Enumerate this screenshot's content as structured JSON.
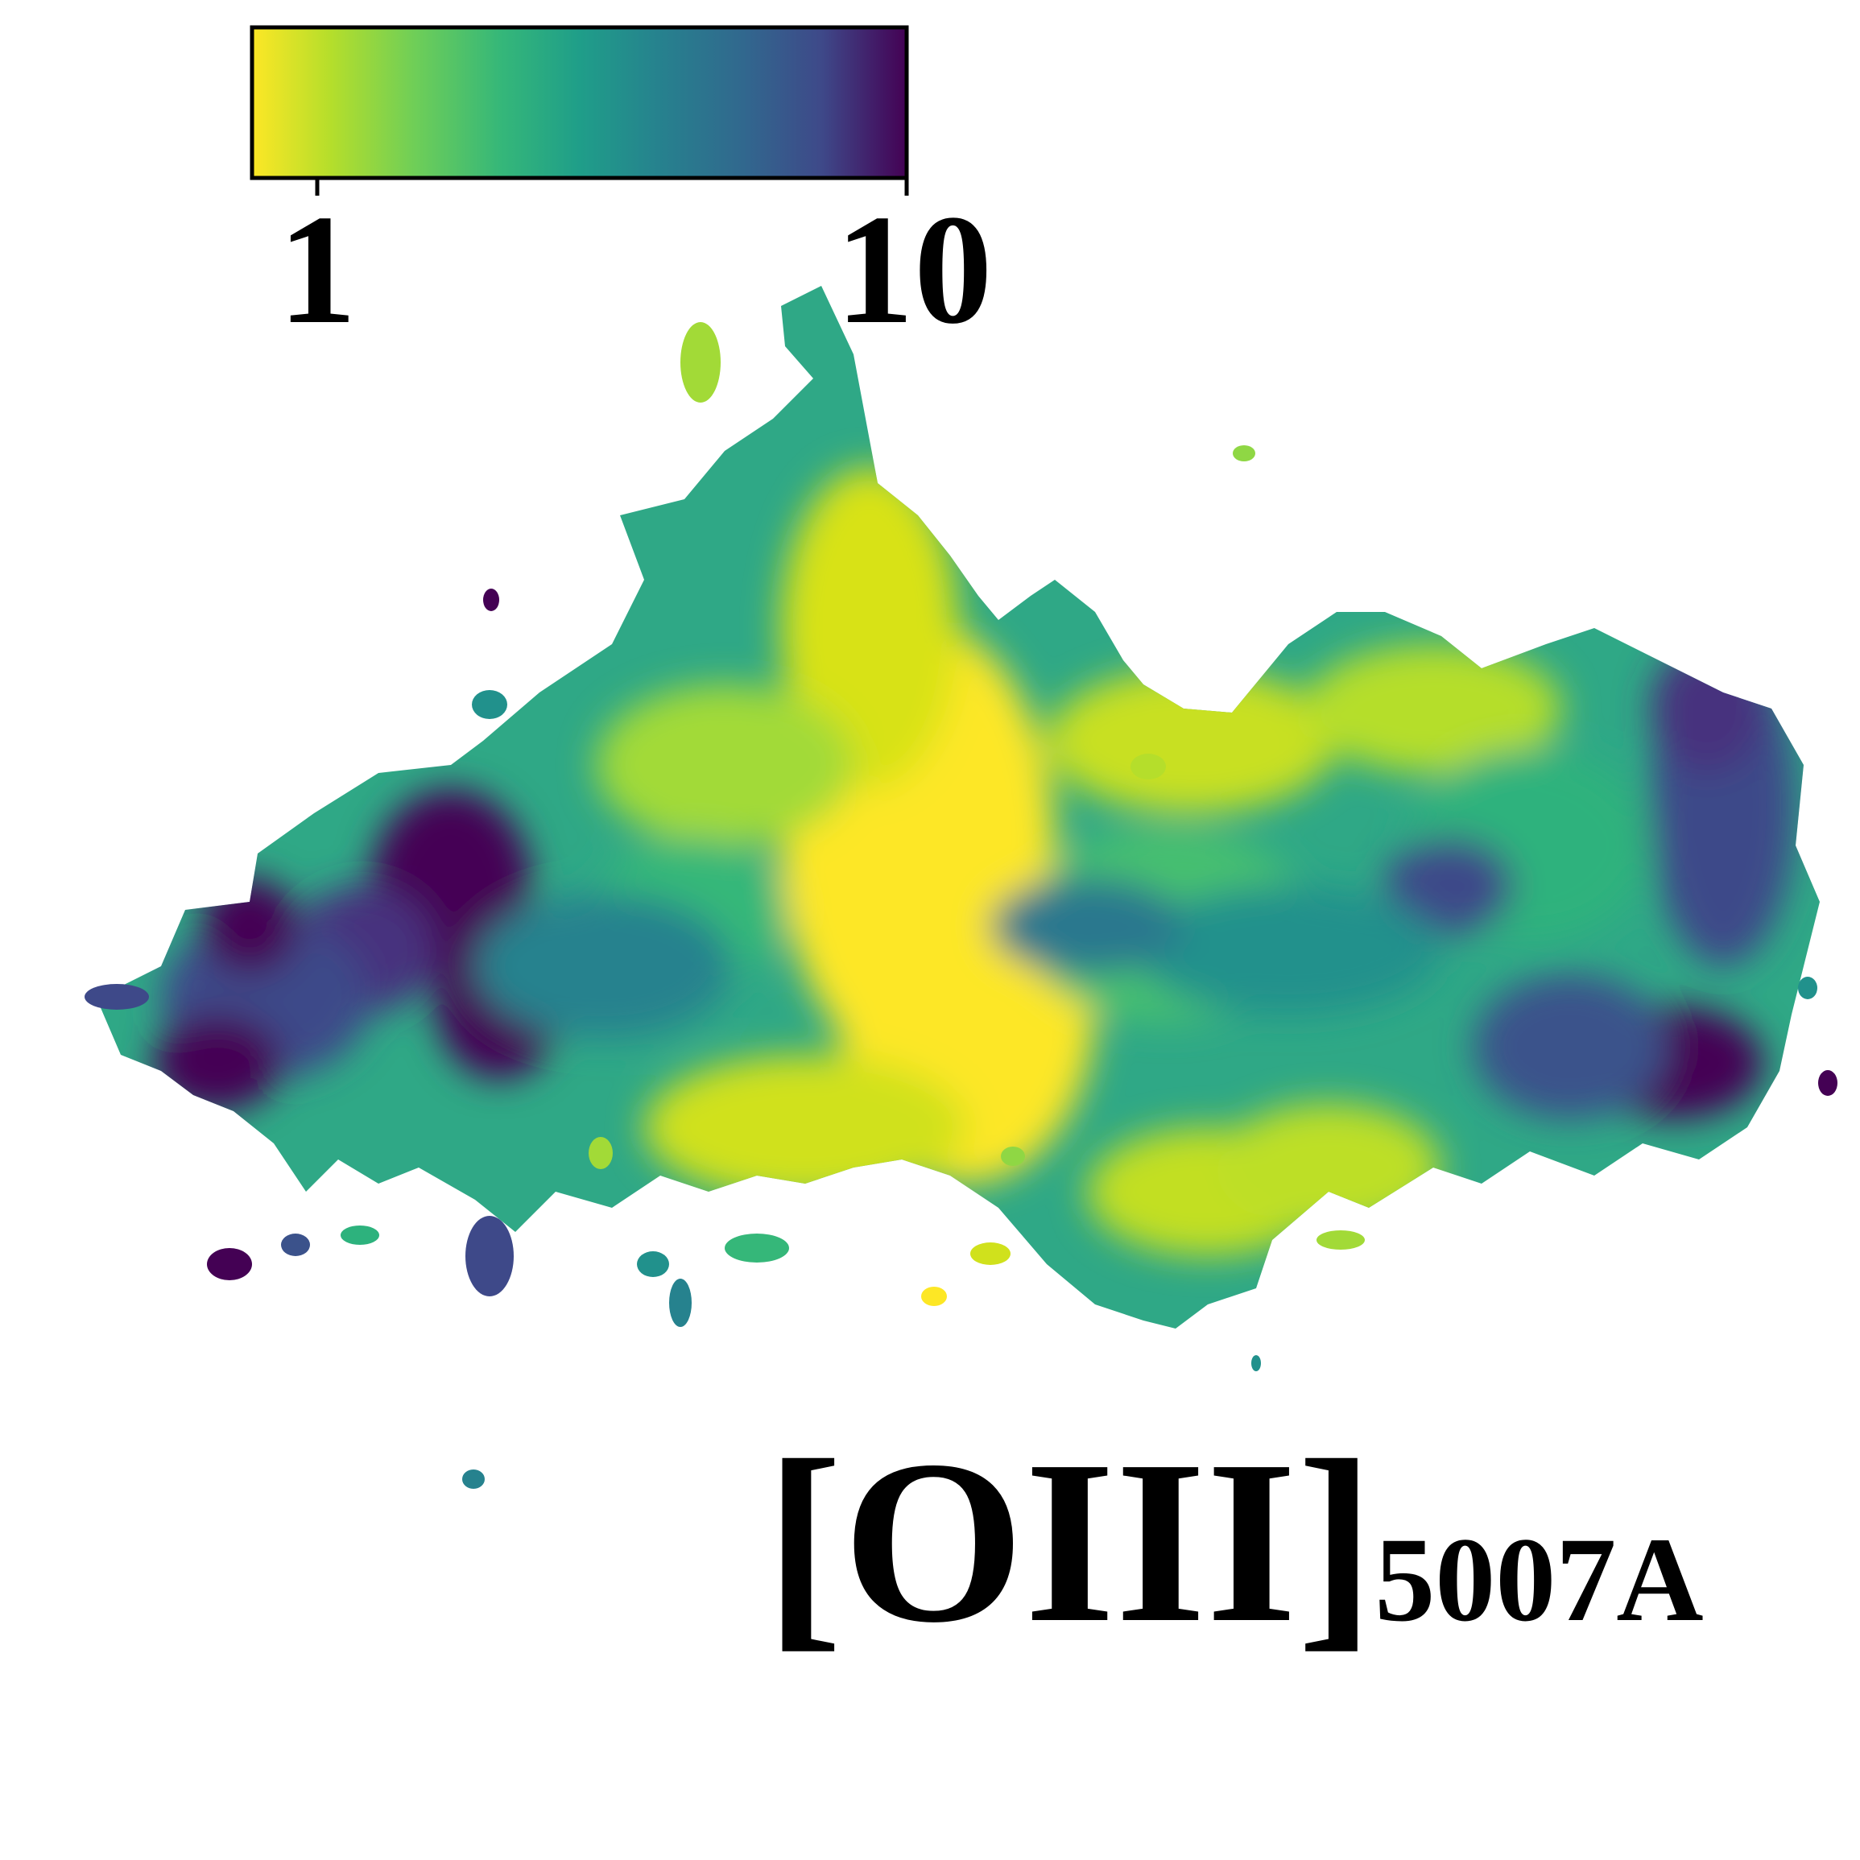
{
  "chart_data": {
    "type": "heatmap",
    "title": "",
    "xlabel": "",
    "ylabel": "",
    "colormap": "viridis_r",
    "colorbar": {
      "scale": "log",
      "range": [
        0.9,
        10
      ],
      "ticks": [
        1,
        10
      ],
      "tick_labels": [
        "1",
        "10"
      ],
      "orientation": "horizontal",
      "placement": "top-left"
    },
    "annotation": {
      "main": "[OIII]",
      "subscript": "5007A"
    },
    "map_description_colors": {
      "low": "#fde725",
      "mid": "#21918c",
      "high": "#440154"
    }
  }
}
